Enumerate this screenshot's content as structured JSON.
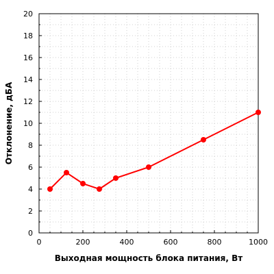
{
  "chart_data": {
    "type": "line",
    "title": "",
    "xlabel": "Выходная мощность блока питания, Вт",
    "ylabel": "Отклонение, дБА",
    "xlim": [
      0,
      1000
    ],
    "ylim": [
      0,
      20
    ],
    "x_ticks": [
      "0",
      "200",
      "400",
      "600",
      "800",
      "1000"
    ],
    "y_ticks": [
      "0",
      "2",
      "4",
      "6",
      "8",
      "10",
      "12",
      "14",
      "16",
      "18",
      "20"
    ],
    "grid": true,
    "legend": "none",
    "series": [
      {
        "color": "#ff0000",
        "x": [
          50,
          125,
          200,
          275,
          350,
          500,
          750,
          1000
        ],
        "y": [
          4,
          5.5,
          4.5,
          4,
          5,
          6,
          8.5,
          11
        ]
      }
    ]
  }
}
